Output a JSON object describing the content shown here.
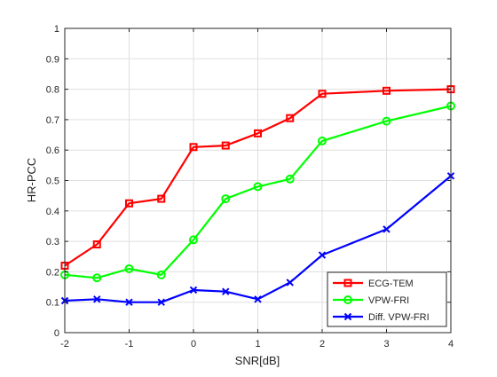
{
  "chart_data": {
    "type": "line",
    "title": "",
    "xlabel": "SNR[dB]",
    "ylabel": "HR-PCC",
    "xlim": [
      -2,
      4
    ],
    "ylim": [
      0,
      1
    ],
    "xticks": [
      -2,
      -1,
      0,
      1,
      2,
      3,
      4
    ],
    "xtick_labels": [
      "-2",
      "-1",
      "0",
      "1",
      "2",
      "3",
      "4"
    ],
    "yticks": [
      0,
      0.1,
      0.2,
      0.3,
      0.4,
      0.5,
      0.6,
      0.7,
      0.8,
      0.9,
      1
    ],
    "ytick_labels": [
      "0",
      "0.1",
      "0.2",
      "0.3",
      "0.4",
      "0.5",
      "0.6",
      "0.7",
      "0.8",
      "0.9",
      "1"
    ],
    "grid": true,
    "legend_position": "bottom-right",
    "x": [
      -2,
      -1.5,
      -1,
      -0.5,
      0,
      0.5,
      1,
      1.5,
      2,
      3,
      4
    ],
    "series": [
      {
        "name": "ECG-TEM",
        "color": "#ff0000",
        "marker": "square",
        "values": [
          0.22,
          0.29,
          0.425,
          0.44,
          0.61,
          0.615,
          0.655,
          0.705,
          0.785,
          0.795,
          0.8
        ]
      },
      {
        "name": "VPW-FRI",
        "color": "#00ff00",
        "marker": "circle",
        "values": [
          0.19,
          0.18,
          0.21,
          0.19,
          0.305,
          0.44,
          0.48,
          0.505,
          0.63,
          0.695,
          0.745
        ]
      },
      {
        "name": "Diff. VPW-FRI",
        "color": "#0000ff",
        "marker": "x",
        "values": [
          0.105,
          0.11,
          0.1,
          0.1,
          0.14,
          0.135,
          0.11,
          0.165,
          0.255,
          0.34,
          0.515
        ]
      }
    ]
  }
}
